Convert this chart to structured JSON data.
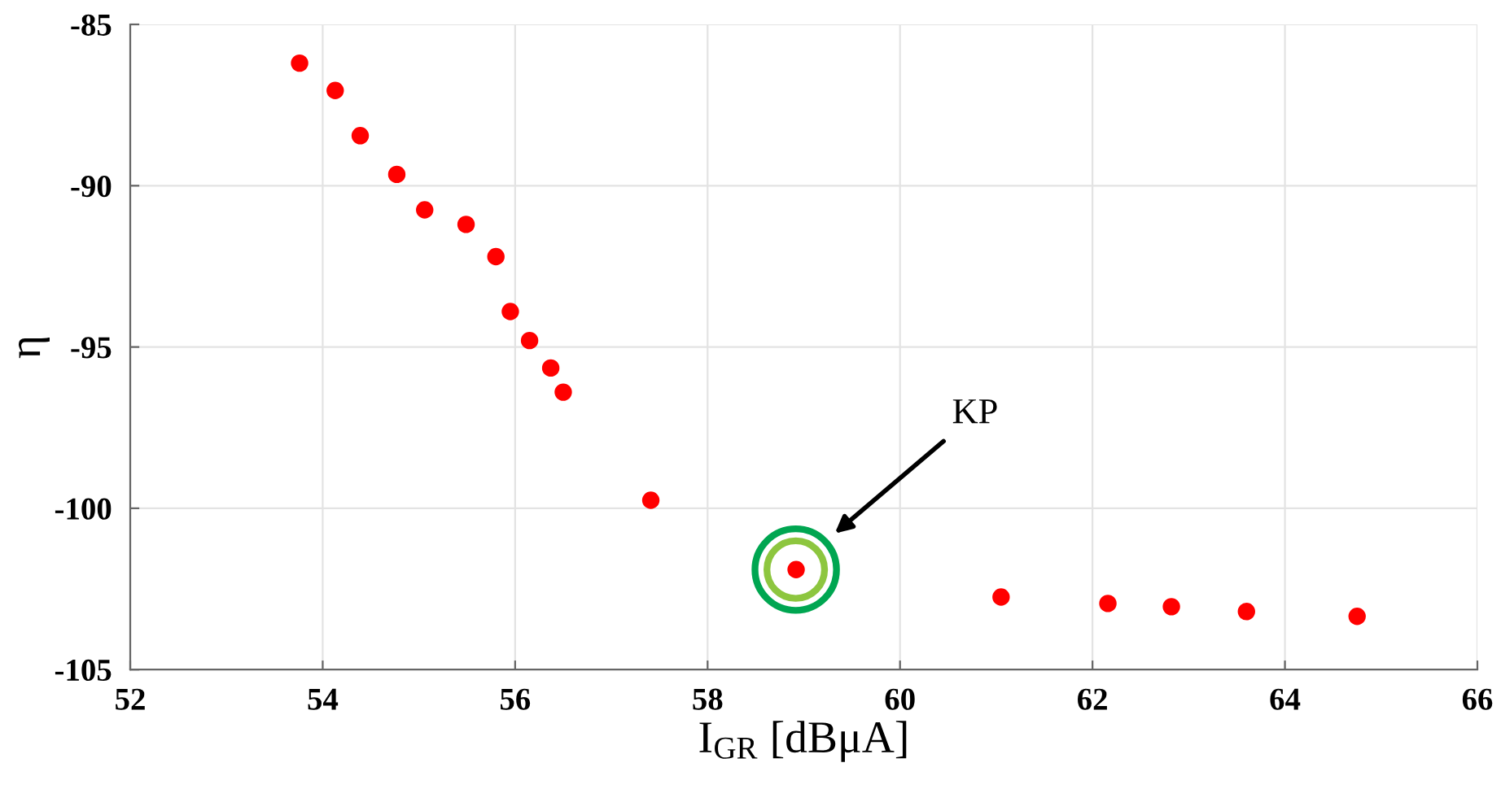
{
  "chart_data": {
    "type": "scatter",
    "xlabel": "I$_{GR}$ [dBμA]",
    "ylabel": "η",
    "x": [
      53.76,
      54.13,
      54.39,
      54.77,
      55.06,
      55.49,
      55.8,
      55.95,
      56.15,
      56.37,
      56.5,
      57.41,
      58.92,
      61.05,
      62.16,
      62.82,
      63.6,
      64.75
    ],
    "series": [
      {
        "color": "#ff0000",
        "values": [
          -86.2,
          -87.05,
          -88.45,
          -89.65,
          -90.75,
          -91.2,
          -92.2,
          -93.9,
          -94.8,
          -95.65,
          -96.4,
          -99.75,
          -101.9,
          -102.75,
          -102.95,
          -103.05,
          -103.2,
          -103.35
        ]
      }
    ],
    "xlim": [
      52,
      66
    ],
    "xticks": [
      52,
      54,
      56,
      58,
      60,
      62,
      64,
      66
    ],
    "ylim": [
      -105,
      -85
    ],
    "yticks": [
      -105,
      -100,
      -95,
      -90,
      -85
    ],
    "grid": true,
    "marker": "circle",
    "annotations": [
      "KP"
    ]
  }
}
